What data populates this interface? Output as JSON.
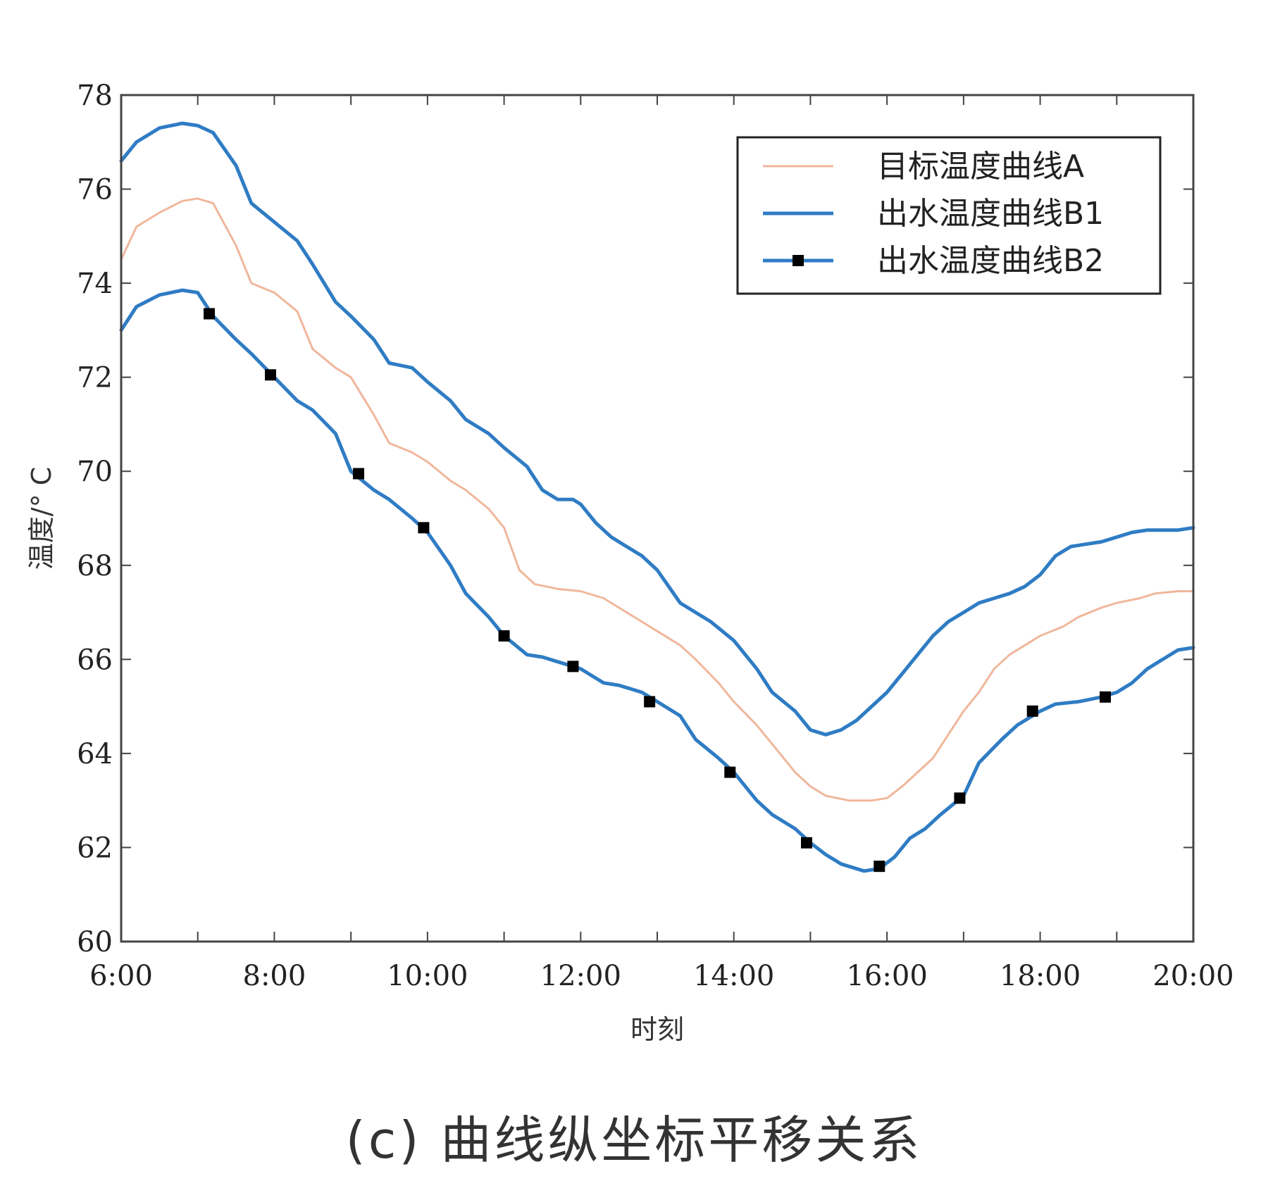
{
  "caption": "(c) 曲线纵坐标平移关系",
  "chart_data": {
    "type": "line",
    "xlabel": "时刻",
    "ylabel": "温度/° C",
    "xlim": [
      6,
      20
    ],
    "ylim": [
      60,
      78
    ],
    "x_ticks": [
      6,
      8,
      10,
      12,
      14,
      16,
      18,
      20
    ],
    "x_tick_labels": [
      "6:00",
      "8:00",
      "10:00",
      "12:00",
      "14:00",
      "16:00",
      "18:00",
      "20:00"
    ],
    "y_ticks": [
      60,
      62,
      64,
      66,
      68,
      70,
      72,
      74,
      76,
      78
    ],
    "y_tick_labels": [
      "60",
      "62",
      "64",
      "66",
      "68",
      "70",
      "72",
      "74",
      "76",
      "78"
    ],
    "grid": false,
    "legend_position": "top-right",
    "series": [
      {
        "name": "目标温度曲线A",
        "color": "#f0b79c",
        "marker": "none",
        "x": [
          6.0,
          6.2,
          6.5,
          6.8,
          7.0,
          7.2,
          7.5,
          7.7,
          8.0,
          8.3,
          8.5,
          8.8,
          9.0,
          9.3,
          9.5,
          9.8,
          10.0,
          10.3,
          10.5,
          10.8,
          11.0,
          11.2,
          11.4,
          11.7,
          12.0,
          12.3,
          12.5,
          12.8,
          13.0,
          13.3,
          13.5,
          13.8,
          14.0,
          14.3,
          14.5,
          14.8,
          15.0,
          15.2,
          15.5,
          15.8,
          16.0,
          16.2,
          16.4,
          16.6,
          16.8,
          17.0,
          17.2,
          17.4,
          17.6,
          17.8,
          18.0,
          18.3,
          18.5,
          18.8,
          19.0,
          19.3,
          19.5,
          19.8,
          20.0
        ],
        "y": [
          74.5,
          75.2,
          75.5,
          75.75,
          75.8,
          75.7,
          74.8,
          74.0,
          73.8,
          73.4,
          72.6,
          72.2,
          72.0,
          71.2,
          70.6,
          70.4,
          70.2,
          69.8,
          69.6,
          69.2,
          68.8,
          67.9,
          67.6,
          67.5,
          67.45,
          67.3,
          67.1,
          66.8,
          66.6,
          66.3,
          66.0,
          65.5,
          65.1,
          64.6,
          64.2,
          63.6,
          63.3,
          63.1,
          63.0,
          63.0,
          63.05,
          63.3,
          63.6,
          63.9,
          64.4,
          64.9,
          65.3,
          65.8,
          66.1,
          66.3,
          66.5,
          66.7,
          66.9,
          67.1,
          67.2,
          67.3,
          67.4,
          67.45,
          67.45
        ]
      },
      {
        "name": "出水温度曲线B1",
        "color": "#2f7cc4",
        "marker": "none",
        "x": [
          6.0,
          6.2,
          6.5,
          6.8,
          7.0,
          7.2,
          7.5,
          7.7,
          8.0,
          8.3,
          8.5,
          8.8,
          9.0,
          9.3,
          9.5,
          9.8,
          10.0,
          10.3,
          10.5,
          10.8,
          11.0,
          11.3,
          11.5,
          11.7,
          11.9,
          12.0,
          12.2,
          12.4,
          12.6,
          12.8,
          13.0,
          13.3,
          13.5,
          13.7,
          14.0,
          14.3,
          14.5,
          14.8,
          15.0,
          15.2,
          15.4,
          15.6,
          15.8,
          16.0,
          16.2,
          16.4,
          16.6,
          16.8,
          17.0,
          17.2,
          17.4,
          17.6,
          17.8,
          18.0,
          18.2,
          18.4,
          18.6,
          18.8,
          19.0,
          19.2,
          19.4,
          19.6,
          19.8,
          20.0
        ],
        "y": [
          76.6,
          77.0,
          77.3,
          77.4,
          77.35,
          77.2,
          76.5,
          75.7,
          75.3,
          74.9,
          74.4,
          73.6,
          73.3,
          72.8,
          72.3,
          72.2,
          71.9,
          71.5,
          71.1,
          70.8,
          70.5,
          70.1,
          69.6,
          69.4,
          69.4,
          69.3,
          68.9,
          68.6,
          68.4,
          68.2,
          67.9,
          67.2,
          67.0,
          66.8,
          66.4,
          65.8,
          65.3,
          64.9,
          64.5,
          64.4,
          64.5,
          64.7,
          65.0,
          65.3,
          65.7,
          66.1,
          66.5,
          66.8,
          67.0,
          67.2,
          67.3,
          67.4,
          67.55,
          67.8,
          68.2,
          68.4,
          68.45,
          68.5,
          68.6,
          68.7,
          68.75,
          68.75,
          68.75,
          68.8
        ]
      },
      {
        "name": "出水温度曲线B2",
        "color": "#2f7cc4",
        "marker": "square",
        "marker_color": "#000000",
        "x": [
          6.0,
          6.2,
          6.5,
          6.8,
          7.0,
          7.2,
          7.5,
          7.7,
          8.0,
          8.3,
          8.5,
          8.8,
          9.0,
          9.3,
          9.5,
          9.8,
          10.0,
          10.3,
          10.5,
          10.8,
          11.0,
          11.3,
          11.5,
          11.7,
          12.0,
          12.3,
          12.5,
          12.8,
          13.0,
          13.3,
          13.5,
          13.8,
          14.0,
          14.3,
          14.5,
          14.8,
          15.0,
          15.2,
          15.4,
          15.7,
          15.9,
          16.1,
          16.3,
          16.5,
          16.7,
          17.0,
          17.2,
          17.5,
          17.7,
          18.0,
          18.2,
          18.5,
          18.8,
          19.0,
          19.2,
          19.4,
          19.6,
          19.8,
          20.0
        ],
        "y": [
          73.0,
          73.5,
          73.75,
          73.85,
          73.8,
          73.3,
          72.8,
          72.5,
          72.0,
          71.5,
          71.3,
          70.8,
          70.0,
          69.6,
          69.4,
          69.0,
          68.7,
          68.0,
          67.4,
          66.9,
          66.5,
          66.1,
          66.05,
          65.95,
          65.8,
          65.5,
          65.45,
          65.3,
          65.1,
          64.8,
          64.3,
          63.9,
          63.6,
          63.0,
          62.7,
          62.4,
          62.1,
          61.85,
          61.65,
          61.5,
          61.55,
          61.8,
          62.2,
          62.4,
          62.7,
          63.1,
          63.8,
          64.3,
          64.6,
          64.9,
          65.05,
          65.1,
          65.2,
          65.3,
          65.5,
          65.8,
          66.0,
          66.2,
          66.25
        ],
        "marker_x": [
          7.15,
          7.95,
          9.1,
          9.95,
          11.0,
          11.9,
          12.9,
          13.95,
          14.95,
          15.9,
          16.95,
          17.9,
          18.85
        ],
        "marker_y": [
          73.35,
          72.05,
          69.95,
          68.8,
          66.5,
          65.85,
          65.1,
          63.6,
          62.1,
          61.6,
          63.05,
          64.9,
          65.2
        ]
      }
    ]
  }
}
